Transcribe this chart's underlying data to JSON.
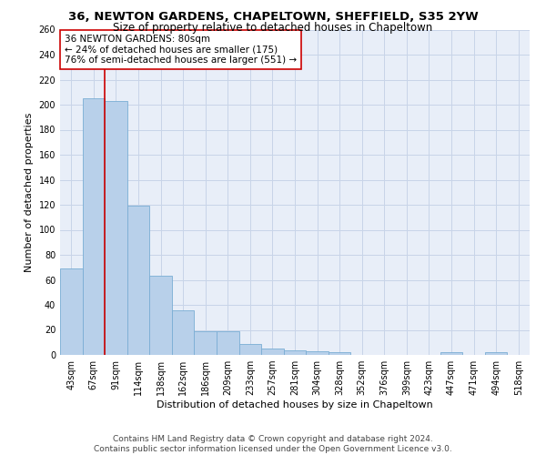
{
  "title": "36, NEWTON GARDENS, CHAPELTOWN, SHEFFIELD, S35 2YW",
  "subtitle": "Size of property relative to detached houses in Chapeltown",
  "xlabel": "Distribution of detached houses by size in Chapeltown",
  "ylabel": "Number of detached properties",
  "bar_labels": [
    "43sqm",
    "67sqm",
    "91sqm",
    "114sqm",
    "138sqm",
    "162sqm",
    "186sqm",
    "209sqm",
    "233sqm",
    "257sqm",
    "281sqm",
    "304sqm",
    "328sqm",
    "352sqm",
    "376sqm",
    "399sqm",
    "423sqm",
    "447sqm",
    "471sqm",
    "494sqm",
    "518sqm"
  ],
  "bar_values": [
    69,
    205,
    203,
    119,
    63,
    36,
    19,
    19,
    9,
    5,
    4,
    3,
    2,
    0,
    0,
    0,
    0,
    2,
    0,
    2,
    0
  ],
  "bar_color": "#b8d0ea",
  "bar_edge_color": "#7aadd4",
  "vline_x": 1.5,
  "vline_color": "#cc0000",
  "annotation_text": "36 NEWTON GARDENS: 80sqm\n← 24% of detached houses are smaller (175)\n76% of semi-detached houses are larger (551) →",
  "annotation_box_color": "#ffffff",
  "annotation_box_edge": "#cc0000",
  "ylim": [
    0,
    260
  ],
  "yticks": [
    0,
    20,
    40,
    60,
    80,
    100,
    120,
    140,
    160,
    180,
    200,
    220,
    240,
    260
  ],
  "grid_color": "#c8d4e8",
  "background_color": "#e8eef8",
  "footnote": "Contains HM Land Registry data © Crown copyright and database right 2024.\nContains public sector information licensed under the Open Government Licence v3.0.",
  "title_fontsize": 9.5,
  "subtitle_fontsize": 8.5,
  "xlabel_fontsize": 8,
  "ylabel_fontsize": 8,
  "tick_fontsize": 7,
  "annotation_fontsize": 7.5,
  "footnote_fontsize": 6.5
}
